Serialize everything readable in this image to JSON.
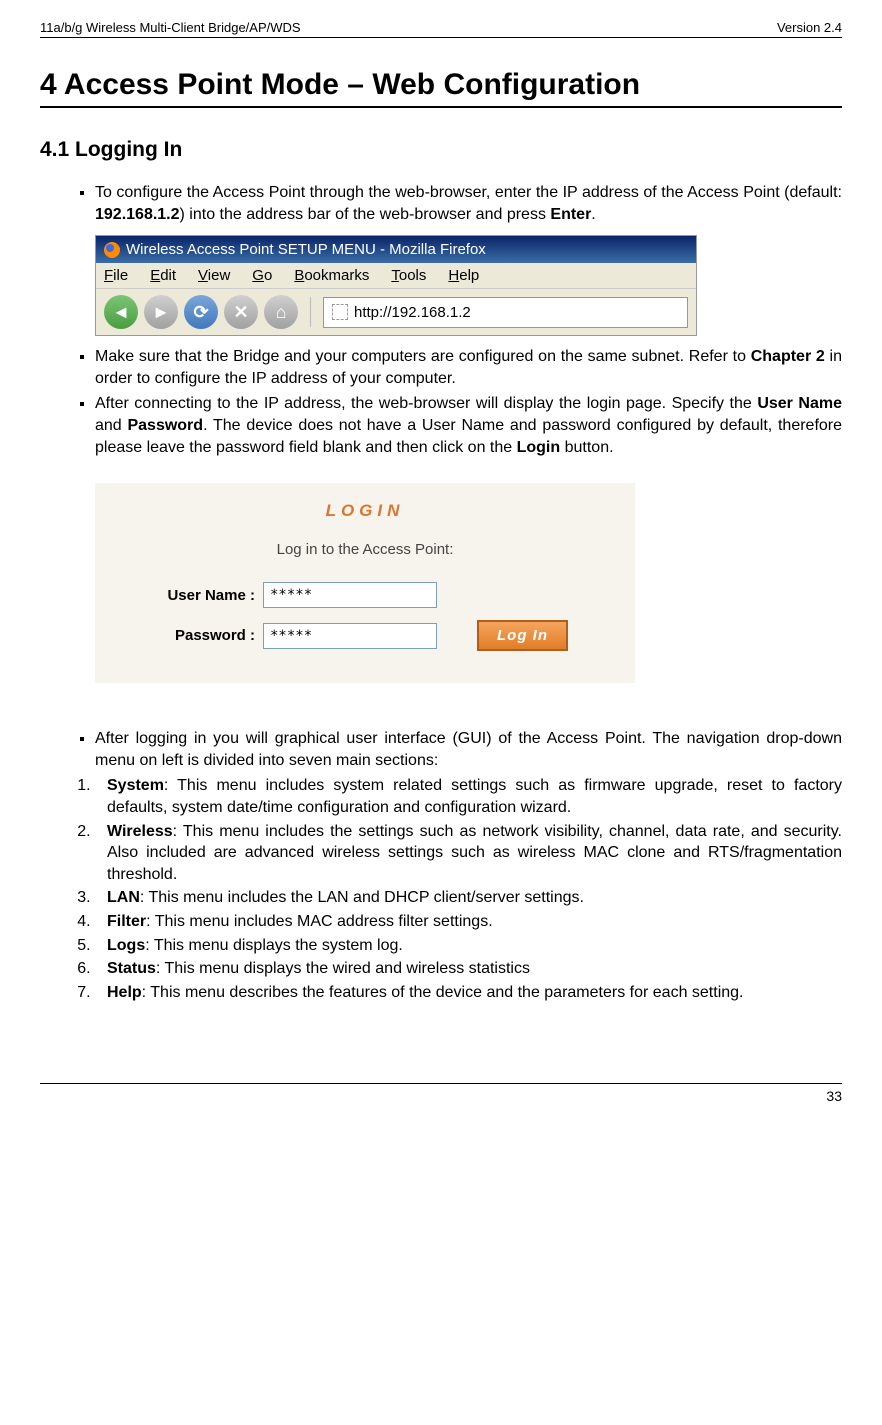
{
  "header": {
    "left": "11a/b/g Wireless Multi-Client Bridge/AP/WDS",
    "right": "Version 2.4"
  },
  "chapter": "4  Access Point Mode – Web Configuration",
  "section": "4.1  Logging In",
  "bullets1": {
    "b1_pre": "To configure the Access Point through the web-browser, enter the IP address of the Access Point (default: ",
    "b1_ip": "192.168.1.2",
    "b1_mid": ") into the address bar of the web-browser and press ",
    "b1_enter": "Enter",
    "b1_end": "."
  },
  "firefox": {
    "title": "Wireless Access Point SETUP MENU - Mozilla Firefox",
    "menu": [
      "File",
      "Edit",
      "View",
      "Go",
      "Bookmarks",
      "Tools",
      "Help"
    ],
    "url": "http://192.168.1.2"
  },
  "bullets2": {
    "b2_pre": "Make sure that the Bridge and your computers are configured on the same subnet. Refer to ",
    "b2_chap": "Chapter 2",
    "b2_end": " in order to configure the IP address of your computer.",
    "b3_pre": "After connecting to the IP address, the web-browser will display the login page. Specify the ",
    "b3_un": "User Name",
    "b3_mid1": " and ",
    "b3_pw": "Password",
    "b3_mid2": ". The device does not have a User Name and password configured by default, therefore please leave the password field blank and then click on the ",
    "b3_login": "Login",
    "b3_end": " button."
  },
  "login": {
    "title": "LOGIN",
    "subtitle": "Log in to the Access Point:",
    "username_label": "User Name :",
    "password_label": "Password :",
    "username_value": "*****",
    "password_value": "*****",
    "button": "Log In"
  },
  "bullets3": {
    "b4": "After logging in you will graphical user interface (GUI) of the Access Point. The navigation drop-down menu on left is divided into seven main sections:"
  },
  "numbered": [
    {
      "name": "System",
      "desc": ": This menu includes system related settings such as firmware upgrade, reset to factory defaults, system date/time configuration and configuration wizard."
    },
    {
      "name": "Wireless",
      "desc": ": This menu includes the settings such as network visibility, channel, data rate, and security. Also included are advanced wireless settings such as wireless MAC clone and RTS/fragmentation threshold."
    },
    {
      "name": "LAN",
      "desc": ": This menu includes the LAN and DHCP client/server settings."
    },
    {
      "name": "Filter",
      "desc": ": This menu includes MAC address filter settings."
    },
    {
      "name": "Logs",
      "desc": ": This menu displays the system log."
    },
    {
      "name": "Status",
      "desc": ": This menu displays the wired and wireless statistics"
    },
    {
      "name": "Help",
      "desc": ":  This menu describes the features of the device and the parameters for each setting."
    }
  ],
  "footer": "33"
}
